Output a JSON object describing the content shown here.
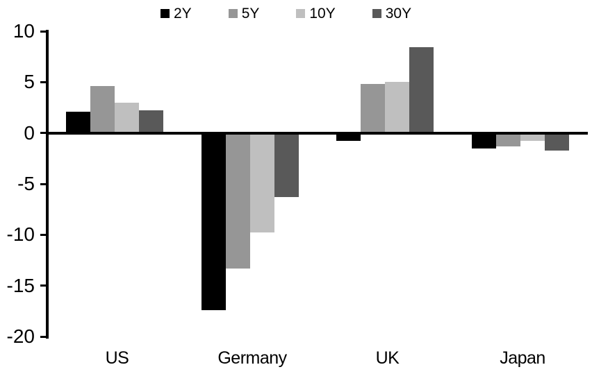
{
  "chart_data": {
    "type": "bar",
    "title": "",
    "xlabel": "",
    "ylabel": "",
    "categories": [
      "US",
      "Germany",
      "UK",
      "Japan"
    ],
    "series": [
      {
        "name": "2Y",
        "color": "#000000",
        "values": [
          2.1,
          -17.4,
          -0.8,
          -1.5
        ]
      },
      {
        "name": "5Y",
        "color": "#969696",
        "values": [
          4.6,
          -13.3,
          4.8,
          -1.3
        ]
      },
      {
        "name": "10Y",
        "color": "#BFBFBF",
        "values": [
          3.0,
          -9.8,
          5.0,
          -0.8
        ]
      },
      {
        "name": "30Y",
        "color": "#595959",
        "values": [
          2.2,
          -6.3,
          8.4,
          -1.7
        ]
      }
    ],
    "ylim": [
      -20,
      10
    ],
    "yticks": [
      10,
      5,
      0,
      -5,
      -10,
      -15,
      -20
    ],
    "grid": false,
    "legend_position": "top",
    "axis_color": "#000000",
    "background_color": "#FFFFFF"
  }
}
